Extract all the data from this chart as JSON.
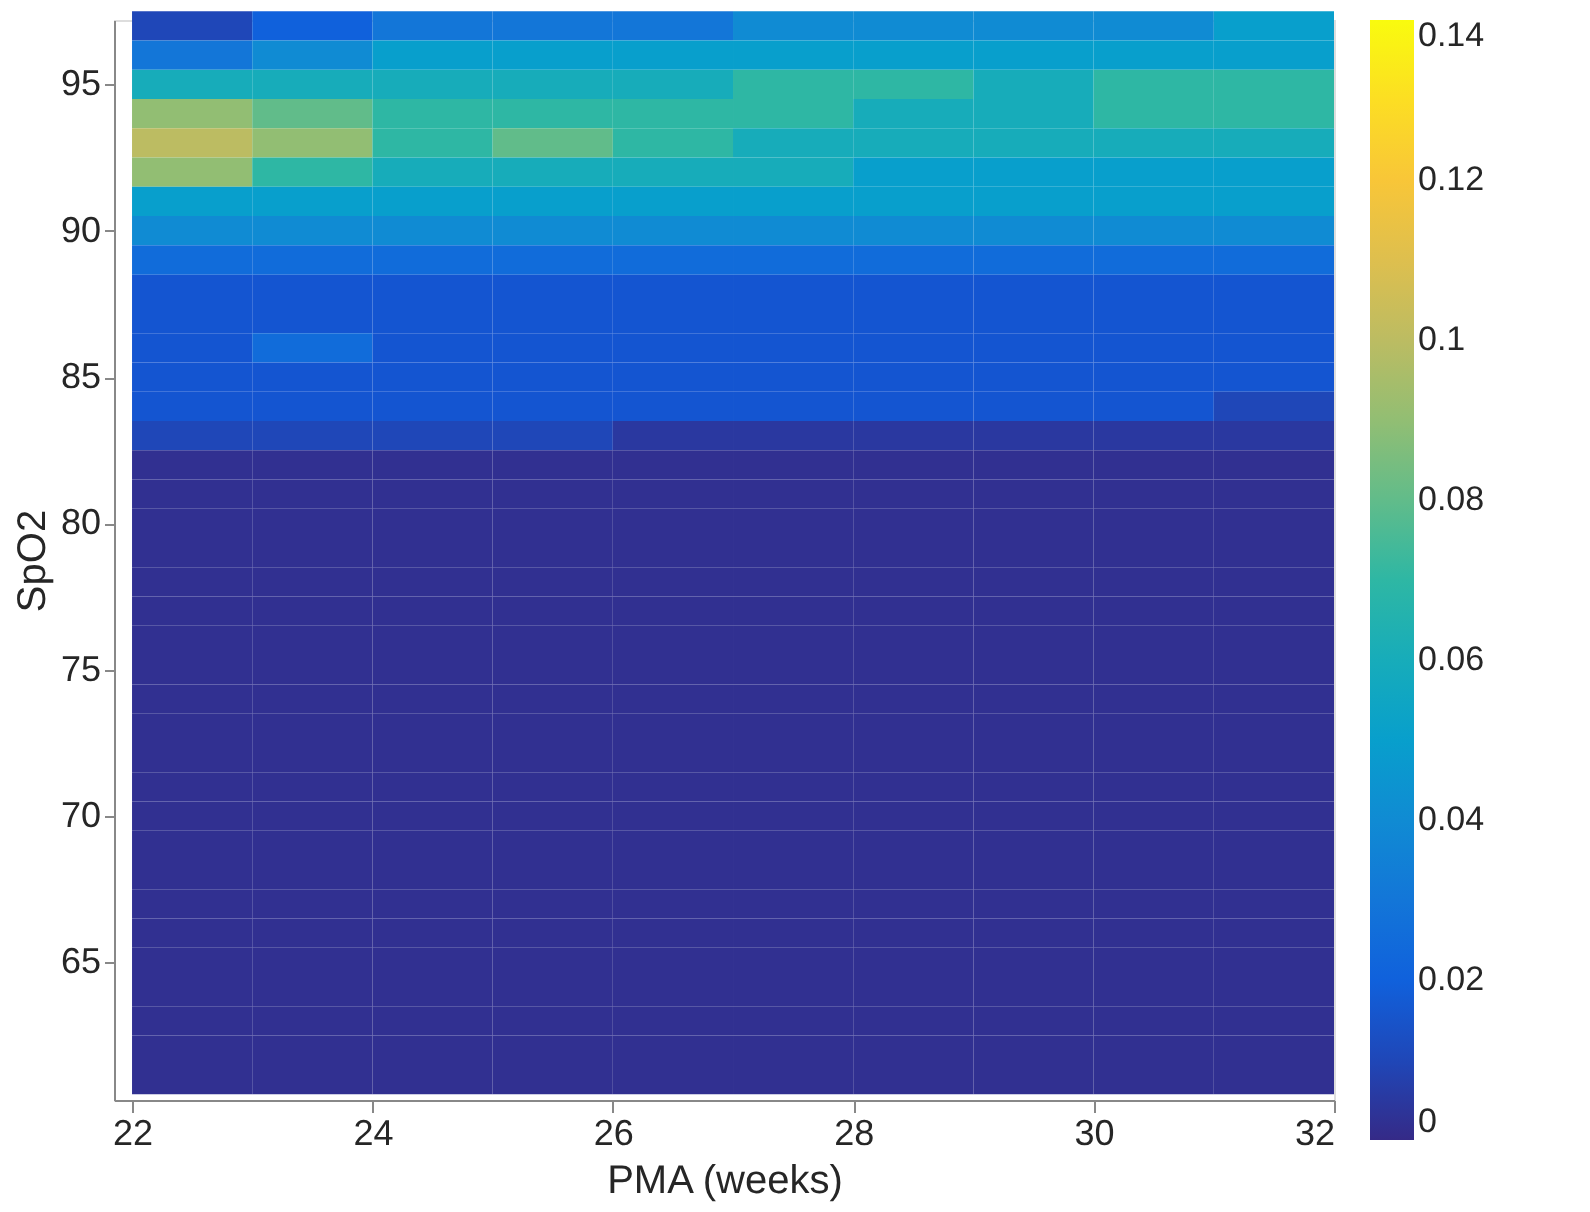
{
  "chart_data": {
    "type": "heatmap",
    "xlabel": "PMA (weeks)",
    "ylabel": "SpO2",
    "x": [
      22.5,
      23.5,
      24.5,
      25.5,
      26.5,
      27.5,
      28.5,
      29.5,
      30.5,
      31.5
    ],
    "y": [
      97,
      96,
      95,
      94,
      93,
      92,
      91,
      90,
      89,
      88,
      87,
      86,
      85,
      84,
      83,
      82,
      81,
      80,
      79,
      78,
      77,
      76,
      75,
      74,
      73,
      72,
      71,
      70,
      69,
      68,
      67,
      66,
      65,
      64,
      63,
      62,
      61
    ],
    "cells": [
      [
        0.01,
        0.02,
        0.03,
        0.03,
        0.03,
        0.04,
        0.04,
        0.04,
        0.04,
        0.05
      ],
      [
        0.03,
        0.04,
        0.05,
        0.05,
        0.05,
        0.05,
        0.05,
        0.05,
        0.05,
        0.05
      ],
      [
        0.06,
        0.06,
        0.06,
        0.06,
        0.06,
        0.07,
        0.07,
        0.06,
        0.07,
        0.07
      ],
      [
        0.09,
        0.08,
        0.07,
        0.07,
        0.07,
        0.07,
        0.06,
        0.06,
        0.07,
        0.07
      ],
      [
        0.1,
        0.09,
        0.07,
        0.08,
        0.07,
        0.06,
        0.06,
        0.06,
        0.06,
        0.06
      ],
      [
        0.09,
        0.07,
        0.06,
        0.06,
        0.06,
        0.06,
        0.05,
        0.05,
        0.05,
        0.05
      ],
      [
        0.05,
        0.05,
        0.05,
        0.05,
        0.05,
        0.05,
        0.05,
        0.05,
        0.05,
        0.05
      ],
      [
        0.04,
        0.04,
        0.04,
        0.04,
        0.04,
        0.04,
        0.04,
        0.04,
        0.04,
        0.04
      ],
      [
        0.025,
        0.025,
        0.025,
        0.025,
        0.025,
        0.025,
        0.025,
        0.025,
        0.025,
        0.025
      ],
      [
        0.015,
        0.015,
        0.015,
        0.015,
        0.015,
        0.015,
        0.015,
        0.015,
        0.015,
        0.015
      ],
      [
        0.015,
        0.015,
        0.015,
        0.015,
        0.015,
        0.015,
        0.015,
        0.015,
        0.015,
        0.015
      ],
      [
        0.015,
        0.025,
        0.015,
        0.015,
        0.015,
        0.015,
        0.015,
        0.015,
        0.015,
        0.015
      ],
      [
        0.015,
        0.015,
        0.015,
        0.015,
        0.015,
        0.015,
        0.015,
        0.015,
        0.015,
        0.015
      ],
      [
        0.015,
        0.015,
        0.015,
        0.015,
        0.015,
        0.015,
        0.015,
        0.015,
        0.015,
        0.01
      ],
      [
        0.01,
        0.01,
        0.01,
        0.01,
        0.005,
        0.005,
        0.005,
        0.005,
        0.005,
        0.005
      ],
      [
        0.002,
        0.002,
        0.002,
        0.002,
        0.002,
        0.002,
        0.002,
        0.002,
        0.002,
        0.002
      ],
      [
        0.002,
        0.002,
        0.002,
        0.002,
        0.002,
        0.002,
        0.002,
        0.002,
        0.002,
        0.002
      ],
      [
        0.002,
        0.002,
        0.002,
        0.002,
        0.002,
        0.002,
        0.002,
        0.002,
        0.002,
        0.002
      ],
      [
        0.002,
        0.002,
        0.002,
        0.002,
        0.002,
        0.002,
        0.002,
        0.002,
        0.002,
        0.002
      ],
      [
        0.002,
        0.002,
        0.002,
        0.002,
        0.002,
        0.002,
        0.002,
        0.002,
        0.002,
        0.002
      ],
      [
        0.002,
        0.002,
        0.002,
        0.002,
        0.002,
        0.002,
        0.002,
        0.002,
        0.002,
        0.002
      ],
      [
        0.002,
        0.002,
        0.002,
        0.002,
        0.002,
        0.002,
        0.002,
        0.002,
        0.002,
        0.002
      ],
      [
        0.002,
        0.002,
        0.002,
        0.002,
        0.002,
        0.002,
        0.002,
        0.002,
        0.002,
        0.002
      ],
      [
        0.002,
        0.002,
        0.002,
        0.002,
        0.002,
        0.002,
        0.002,
        0.002,
        0.002,
        0.002
      ],
      [
        0.002,
        0.002,
        0.002,
        0.002,
        0.002,
        0.002,
        0.002,
        0.002,
        0.002,
        0.002
      ],
      [
        0.002,
        0.002,
        0.002,
        0.002,
        0.002,
        0.002,
        0.002,
        0.002,
        0.002,
        0.002
      ],
      [
        0.002,
        0.002,
        0.002,
        0.002,
        0.002,
        0.002,
        0.002,
        0.002,
        0.002,
        0.002
      ],
      [
        0.002,
        0.002,
        0.002,
        0.002,
        0.002,
        0.002,
        0.002,
        0.002,
        0.002,
        0.002
      ],
      [
        0.002,
        0.002,
        0.002,
        0.002,
        0.002,
        0.002,
        0.002,
        0.002,
        0.002,
        0.002
      ],
      [
        0.002,
        0.002,
        0.002,
        0.002,
        0.002,
        0.002,
        0.002,
        0.002,
        0.002,
        0.002
      ],
      [
        0.002,
        0.002,
        0.002,
        0.002,
        0.002,
        0.002,
        0.002,
        0.002,
        0.002,
        0.002
      ],
      [
        0.002,
        0.002,
        0.002,
        0.002,
        0.002,
        0.002,
        0.002,
        0.002,
        0.002,
        0.002
      ],
      [
        0.002,
        0.002,
        0.002,
        0.002,
        0.002,
        0.002,
        0.002,
        0.002,
        0.002,
        0.002
      ],
      [
        0.002,
        0.002,
        0.002,
        0.002,
        0.002,
        0.002,
        0.002,
        0.002,
        0.002,
        0.002
      ],
      [
        0.002,
        0.002,
        0.002,
        0.002,
        0.002,
        0.002,
        0.002,
        0.002,
        0.002,
        0.002
      ],
      [
        0.002,
        0.002,
        0.002,
        0.002,
        0.002,
        0.002,
        0.002,
        0.002,
        0.002,
        0.002
      ],
      [
        0.002,
        0.002,
        0.002,
        0.002,
        0.002,
        0.002,
        0.002,
        0.002,
        0.002,
        0.002
      ]
    ],
    "xlim": [
      21.85,
      32
    ],
    "xticks": [
      22,
      24,
      26,
      28,
      30,
      32
    ],
    "ylim": [
      60.3,
      97.2
    ],
    "yticks": [
      65,
      70,
      75,
      80,
      85,
      90,
      95
    ],
    "clim": [
      0,
      0.14
    ],
    "cticks": [
      0,
      0.02,
      0.04,
      0.06,
      0.08,
      0.1,
      0.12,
      0.14
    ],
    "grid": false
  }
}
